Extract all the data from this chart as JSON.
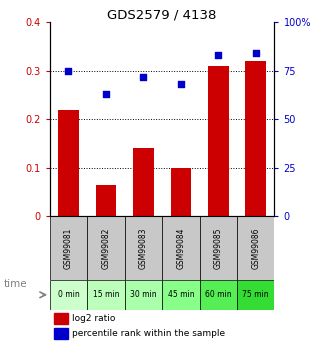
{
  "title": "GDS2579 / 4138",
  "samples": [
    "GSM99081",
    "GSM99082",
    "GSM99083",
    "GSM99084",
    "GSM99085",
    "GSM99086"
  ],
  "time_labels": [
    "0 min",
    "15 min",
    "30 min",
    "45 min",
    "60 min",
    "75 min"
  ],
  "time_colors": [
    "#ccffcc",
    "#bbffbb",
    "#aaffaa",
    "#88ff88",
    "#55ee55",
    "#33dd33"
  ],
  "log2_ratio": [
    0.22,
    0.065,
    0.14,
    0.1,
    0.31,
    0.32
  ],
  "percentile_rank": [
    75,
    63,
    72,
    68,
    83,
    84
  ],
  "bar_color": "#cc0000",
  "dot_color": "#0000cc",
  "left_ylim": [
    0,
    0.4
  ],
  "right_ylim": [
    0,
    100
  ],
  "left_yticks": [
    0,
    0.1,
    0.2,
    0.3,
    0.4
  ],
  "right_yticks": [
    0,
    25,
    50,
    75,
    100
  ],
  "left_yticklabels": [
    "0",
    "0.1",
    "0.2",
    "0.3",
    "0.4"
  ],
  "right_yticklabels": [
    "0",
    "25",
    "50",
    "75",
    "100%"
  ],
  "hlines": [
    0.1,
    0.2,
    0.3
  ],
  "sample_bg_color": "#c8c8c8",
  "legend_log2": "log2 ratio",
  "legend_pct": "percentile rank within the sample",
  "time_label_prefix": "time"
}
